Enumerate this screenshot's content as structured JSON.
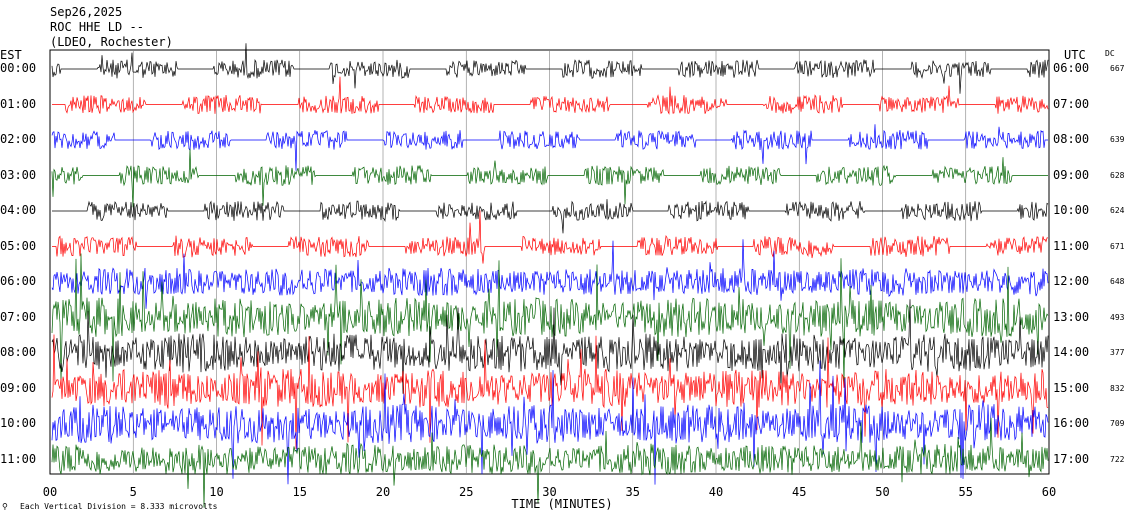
{
  "header": {
    "date": "Sep26,2025",
    "station": "ROC HHE LD --",
    "network": "(LDEO, Rochester)"
  },
  "left_axis_title": "EST",
  "right_axis_title": "UTC",
  "dc_title": "DC",
  "footer": {
    "note_icon": "small-mark-icon",
    "scale_note": "Each Vertical Division = 8.333 microvolts"
  },
  "colors": {
    "black": "#000000",
    "red": "#ff0000",
    "blue": "#0000ff",
    "green": "#006400",
    "grid": "#808080"
  },
  "chart_data": {
    "type": "line",
    "title": "ROC HHE LD --",
    "xlabel": "TIME (MINUTES)",
    "ylabel": "",
    "xlim": [
      0,
      60
    ],
    "x_ticks": [
      "00",
      "5",
      "10",
      "15",
      "20",
      "25",
      "30",
      "35",
      "40",
      "45",
      "50",
      "55",
      "60"
    ],
    "rows": [
      {
        "est": "00:00",
        "utc": "06:00",
        "dc": "667",
        "color": "black",
        "activity": 0.25
      },
      {
        "est": "01:00",
        "utc": "07:00",
        "dc": "",
        "color": "red",
        "activity": 0.25
      },
      {
        "est": "02:00",
        "utc": "08:00",
        "dc": "639",
        "color": "blue",
        "activity": 0.3
      },
      {
        "est": "03:00",
        "utc": "09:00",
        "dc": "628",
        "color": "green",
        "activity": 0.3
      },
      {
        "est": "04:00",
        "utc": "10:00",
        "dc": "624",
        "color": "black",
        "activity": 0.3
      },
      {
        "est": "05:00",
        "utc": "11:00",
        "dc": "671",
        "color": "red",
        "activity": 0.35
      },
      {
        "est": "06:00",
        "utc": "12:00",
        "dc": "648",
        "color": "blue",
        "activity": 0.6
      },
      {
        "est": "07:00",
        "utc": "13:00",
        "dc": "493",
        "color": "green",
        "activity": 1.0
      },
      {
        "est": "08:00",
        "utc": "14:00",
        "dc": "377",
        "color": "black",
        "activity": 1.0
      },
      {
        "est": "09:00",
        "utc": "15:00",
        "dc": "832",
        "color": "red",
        "activity": 1.0
      },
      {
        "est": "10:00",
        "utc": "16:00",
        "dc": "709",
        "color": "blue",
        "activity": 1.0
      },
      {
        "est": "11:00",
        "utc": "17:00",
        "dc": "722",
        "color": "green",
        "activity": 0.7
      }
    ],
    "grid": true
  }
}
